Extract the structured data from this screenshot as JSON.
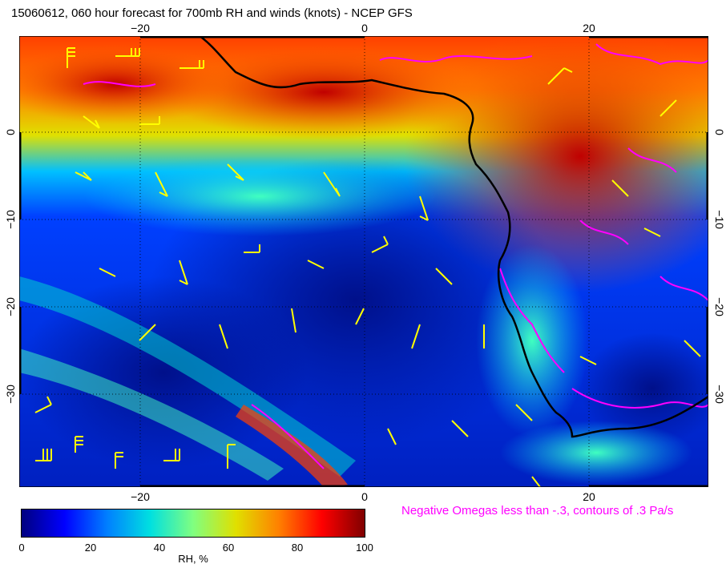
{
  "title": "15060612, 060 hour forecast for 700mb RH and winds (knots) - NCEP GFS",
  "axes": {
    "x_ticks_top": [
      "−20",
      "0",
      "20"
    ],
    "x_ticks_bottom": [
      "−20",
      "0",
      "20"
    ],
    "y_ticks_left": [
      "0",
      "−10",
      "−20",
      "−30"
    ],
    "y_ticks_right": [
      "0",
      "−10",
      "−20",
      "−30"
    ]
  },
  "legend": {
    "omega_note": "Negative Omegas less than -.3, contours of .3 Pa/s",
    "omega_color": "#ff00ff"
  },
  "colorbar": {
    "title": "RH, %",
    "ticks": [
      "0",
      "20",
      "40",
      "60",
      "80",
      "100"
    ],
    "colors": [
      "#000080",
      "#0000ff",
      "#0080ff",
      "#00e0e0",
      "#80ff80",
      "#e0e000",
      "#ff8000",
      "#ff0000",
      "#800000"
    ]
  },
  "map": {
    "coastline_color": "#000000",
    "wind_barb_color": "#ffff00",
    "gridline_style": "dotted"
  }
}
